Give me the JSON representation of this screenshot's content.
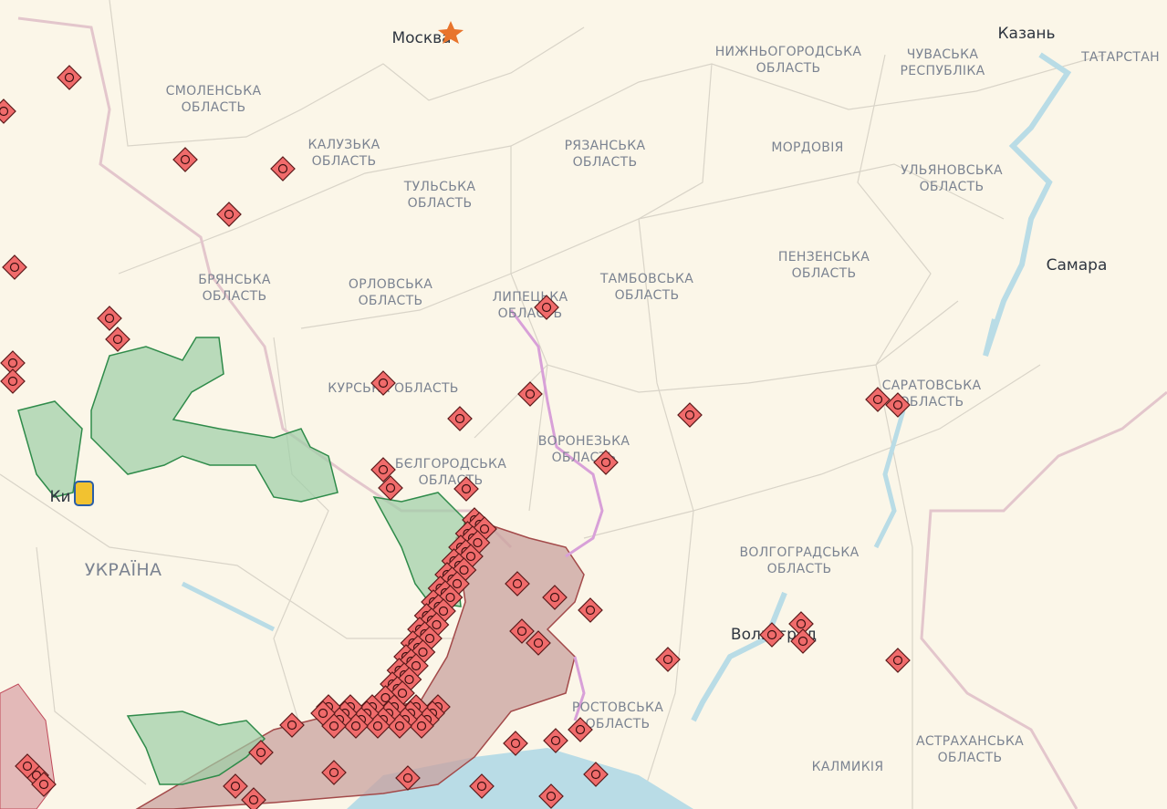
{
  "cities": [
    "Москва",
    "Казань",
    "Самара",
    "Ки",
    "Волгоград"
  ],
  "country": "УКРАЇНА",
  "regions": [
    [
      "СМОЛЕНСЬКА",
      "ОБЛАСТЬ"
    ],
    [
      "КАЛУЗЬКА",
      "ОБЛАСТЬ"
    ],
    [
      "ТУЛЬСЬКА",
      "ОБЛАСТЬ"
    ],
    [
      "РЯЗАНСЬКА",
      "ОБЛАСТЬ"
    ],
    [
      "НИЖНЬОГОРОДСЬКА",
      "ОБЛАСТЬ"
    ],
    [
      "ЧУВАСЬКА",
      "РЕСПУБЛІКА"
    ],
    [
      "ТАТАРСТАН"
    ],
    [
      "МОРДОВІЯ"
    ],
    [
      "УЛЬЯНОВСЬКА",
      "ОБЛАСТЬ"
    ],
    [
      "БРЯНСЬКА",
      "ОБЛАСТЬ"
    ],
    [
      "ОРЛОВСЬКА",
      "ОБЛАСТЬ"
    ],
    [
      "ЛИПЕЦЬКА",
      "ОБЛАСТЬ"
    ],
    [
      "ТАМБОВСЬКА",
      "ОБЛАСТЬ"
    ],
    [
      "ПЕНЗЕНСЬКА",
      "ОБЛАСТЬ"
    ],
    [
      "КУРСЬКА ОБЛАСТЬ"
    ],
    [
      "ВОРОНЕЗЬКА",
      "ОБЛАСТЬ"
    ],
    [
      "БЄЛГОРОДСЬКА",
      "ОБЛАСТЬ"
    ],
    [
      "САРАТОВСЬКА",
      "ОБЛАСТЬ"
    ],
    [
      "ВОЛГОГРАДСЬКА",
      "ОБЛАСТЬ"
    ],
    [
      "РОСТОВСЬКА",
      "ОБЛАСТЬ"
    ],
    [
      "КАЛМИКІЯ"
    ],
    [
      "АСТРАХАНСЬКА",
      "ОБЛАСТЬ"
    ]
  ]
}
